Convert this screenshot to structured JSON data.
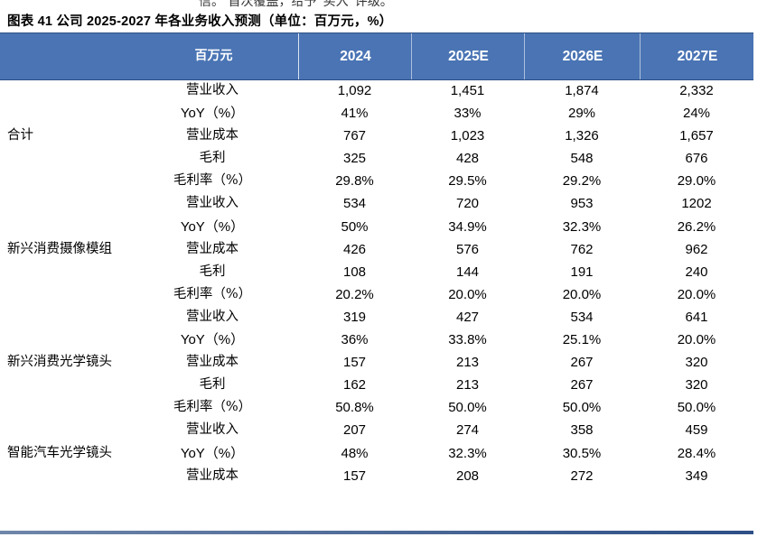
{
  "top_fragment": "信。 首次覆盖，给予“买入”评级。",
  "caption": "图表 41 公司 2025-2027 年各业务收入预测（单位：百万元，%）",
  "table": {
    "headers": [
      "百万元",
      "2024",
      "2025E",
      "2026E",
      "2027E"
    ],
    "groups": [
      {
        "name": "合计",
        "rows": [
          {
            "metric": "营业收入",
            "values": [
              "1,092",
              "1,451",
              "1,874",
              "2,332"
            ]
          },
          {
            "metric": "YoY（%）",
            "values": [
              "41%",
              "33%",
              "29%",
              "24%"
            ]
          },
          {
            "metric": "营业成本",
            "values": [
              "767",
              "1,023",
              "1,326",
              "1,657"
            ]
          },
          {
            "metric": "毛利",
            "values": [
              "325",
              "428",
              "548",
              "676"
            ]
          },
          {
            "metric": "毛利率（%）",
            "values": [
              "29.8%",
              "29.5%",
              "29.2%",
              "29.0%"
            ]
          }
        ]
      },
      {
        "name": "新兴消费摄像模组",
        "rows": [
          {
            "metric": "营业收入",
            "values": [
              "534",
              "720",
              "953",
              "1202"
            ]
          },
          {
            "metric": "YoY（%）",
            "values": [
              "50%",
              "34.9%",
              "32.3%",
              "26.2%"
            ]
          },
          {
            "metric": "营业成本",
            "values": [
              "426",
              "576",
              "762",
              "962"
            ]
          },
          {
            "metric": "毛利",
            "values": [
              "108",
              "144",
              "191",
              "240"
            ]
          },
          {
            "metric": "毛利率（%）",
            "values": [
              "20.2%",
              "20.0%",
              "20.0%",
              "20.0%"
            ]
          }
        ]
      },
      {
        "name": "新兴消费光学镜头",
        "rows": [
          {
            "metric": "营业收入",
            "values": [
              "319",
              "427",
              "534",
              "641"
            ]
          },
          {
            "metric": "YoY（%）",
            "values": [
              "36%",
              "33.8%",
              "25.1%",
              "20.0%"
            ]
          },
          {
            "metric": "营业成本",
            "values": [
              "157",
              "213",
              "267",
              "320"
            ]
          },
          {
            "metric": "毛利",
            "values": [
              "162",
              "213",
              "267",
              "320"
            ]
          },
          {
            "metric": "毛利率（%）",
            "values": [
              "50.8%",
              "50.0%",
              "50.0%",
              "50.0%"
            ]
          }
        ]
      },
      {
        "name": "智能汽车光学镜头",
        "rows": [
          {
            "metric": "营业收入",
            "values": [
              "207",
              "274",
              "358",
              "459"
            ]
          },
          {
            "metric": "YoY（%）",
            "values": [
              "48%",
              "32.3%",
              "30.5%",
              "28.4%"
            ]
          },
          {
            "metric": "营业成本",
            "values": [
              "157",
              "208",
              "272",
              "349"
            ]
          }
        ]
      }
    ]
  }
}
